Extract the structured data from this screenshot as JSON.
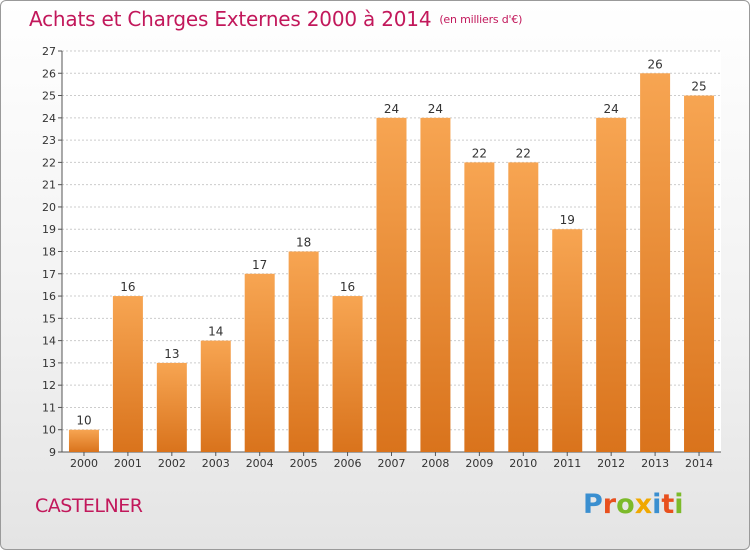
{
  "title": "Achats et Charges Externes 2000 à 2014",
  "unit": "(en milliers d'€)",
  "commune": "CASTELNER",
  "brand": {
    "letters": [
      "P",
      "r",
      "o",
      "x",
      "i",
      "t",
      "i"
    ],
    "colors": [
      "#3a8fd0",
      "#e8501e",
      "#7cba2a",
      "#f0a800",
      "#3a8fd0",
      "#e8501e",
      "#7cba2a"
    ]
  },
  "chart_data": {
    "type": "bar",
    "title": "Achats et Charges Externes 2000 à 2014",
    "xlabel": "",
    "ylabel": "",
    "categories": [
      "2000",
      "2001",
      "2002",
      "2003",
      "2004",
      "2005",
      "2006",
      "2007",
      "2008",
      "2009",
      "2010",
      "2011",
      "2012",
      "2013",
      "2014"
    ],
    "values": [
      10,
      16,
      13,
      14,
      17,
      18,
      16,
      24,
      24,
      22,
      22,
      19,
      24,
      26,
      25
    ],
    "ylim": [
      9,
      27
    ],
    "yticks": [
      9,
      10,
      11,
      12,
      13,
      14,
      15,
      16,
      17,
      18,
      19,
      20,
      21,
      22,
      23,
      24,
      25,
      26,
      27
    ],
    "grid": true,
    "bar_color": "#f2913c"
  }
}
